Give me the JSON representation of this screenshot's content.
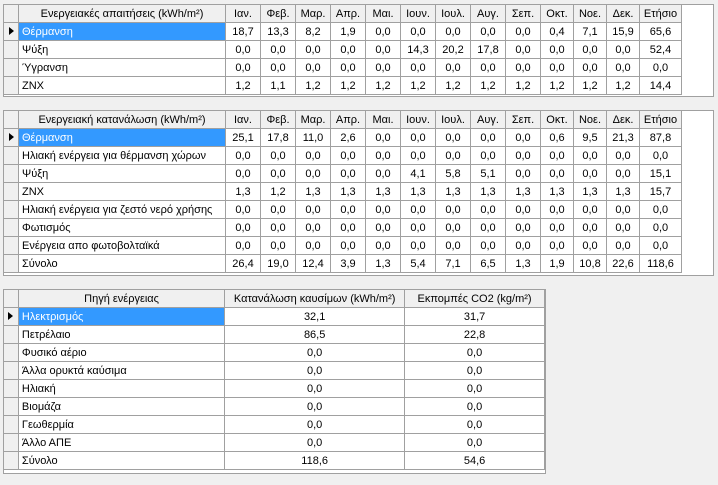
{
  "months": [
    "Ιαν.",
    "Φεβ.",
    "Μαρ.",
    "Απρ.",
    "Μαι.",
    "Ιουν.",
    "Ιουλ.",
    "Αυγ.",
    "Σεπ.",
    "Οκτ.",
    "Νοε.",
    "Δεκ.",
    "Ετήσιο"
  ],
  "demand": {
    "header": "Ενεργειακές απαιτήσεις (kWh/m²)",
    "rows": [
      {
        "label": "Θέρμανση",
        "values": [
          "18,7",
          "13,3",
          "8,2",
          "1,9",
          "0,0",
          "0,0",
          "0,0",
          "0,0",
          "0,0",
          "0,4",
          "7,1",
          "15,9",
          "65,6"
        ]
      },
      {
        "label": "Ψύξη",
        "values": [
          "0,0",
          "0,0",
          "0,0",
          "0,0",
          "0,0",
          "14,3",
          "20,2",
          "17,8",
          "0,0",
          "0,0",
          "0,0",
          "0,0",
          "52,4"
        ]
      },
      {
        "label": "Ύγρανση",
        "values": [
          "0,0",
          "0,0",
          "0,0",
          "0,0",
          "0,0",
          "0,0",
          "0,0",
          "0,0",
          "0,0",
          "0,0",
          "0,0",
          "0,0",
          "0,0"
        ]
      },
      {
        "label": "ΖΝΧ",
        "values": [
          "1,2",
          "1,1",
          "1,2",
          "1,2",
          "1,2",
          "1,2",
          "1,2",
          "1,2",
          "1,2",
          "1,2",
          "1,2",
          "1,2",
          "14,4"
        ]
      }
    ]
  },
  "consumption": {
    "header": "Ενεργειακή κατανάλωση (kWh/m²)",
    "rows": [
      {
        "label": "Θέρμανση",
        "values": [
          "25,1",
          "17,8",
          "11,0",
          "2,6",
          "0,0",
          "0,0",
          "0,0",
          "0,0",
          "0,0",
          "0,6",
          "9,5",
          "21,3",
          "87,8"
        ]
      },
      {
        "label": "Ηλιακή ενέργεια για θέρμανση χώρων",
        "values": [
          "0,0",
          "0,0",
          "0,0",
          "0,0",
          "0,0",
          "0,0",
          "0,0",
          "0,0",
          "0,0",
          "0,0",
          "0,0",
          "0,0",
          "0,0"
        ]
      },
      {
        "label": "Ψύξη",
        "values": [
          "0,0",
          "0,0",
          "0,0",
          "0,0",
          "0,0",
          "4,1",
          "5,8",
          "5,1",
          "0,0",
          "0,0",
          "0,0",
          "0,0",
          "15,1"
        ]
      },
      {
        "label": "ΖΝΧ",
        "values": [
          "1,3",
          "1,2",
          "1,3",
          "1,3",
          "1,3",
          "1,3",
          "1,3",
          "1,3",
          "1,3",
          "1,3",
          "1,3",
          "1,3",
          "15,7"
        ]
      },
      {
        "label": "Ηλιακή ενέργεια για ζεστό νερό χρήσης",
        "values": [
          "0,0",
          "0,0",
          "0,0",
          "0,0",
          "0,0",
          "0,0",
          "0,0",
          "0,0",
          "0,0",
          "0,0",
          "0,0",
          "0,0",
          "0,0"
        ]
      },
      {
        "label": "Φωτισμός",
        "values": [
          "0,0",
          "0,0",
          "0,0",
          "0,0",
          "0,0",
          "0,0",
          "0,0",
          "0,0",
          "0,0",
          "0,0",
          "0,0",
          "0,0",
          "0,0"
        ]
      },
      {
        "label": "Ενέργεια απο φωτοβολταϊκά",
        "values": [
          "0,0",
          "0,0",
          "0,0",
          "0,0",
          "0,0",
          "0,0",
          "0,0",
          "0,0",
          "0,0",
          "0,0",
          "0,0",
          "0,0",
          "0,0"
        ]
      },
      {
        "label": "Σύνολο",
        "values": [
          "26,4",
          "19,0",
          "12,4",
          "3,9",
          "1,3",
          "5,4",
          "7,1",
          "6,5",
          "1,3",
          "1,9",
          "10,8",
          "22,6",
          "118,6"
        ]
      }
    ]
  },
  "sources": {
    "headers": [
      "Πηγή ενέργειας",
      "Κατανάλωση καυσίμων (kWh/m²)",
      "Εκπομπές CO2 (kg/m²)"
    ],
    "rows": [
      {
        "label": "Ηλεκτρισμός",
        "fuel": "32,1",
        "co2": "31,7"
      },
      {
        "label": "Πετρέλαιο",
        "fuel": "86,5",
        "co2": "22,8"
      },
      {
        "label": "Φυσικό αέριο",
        "fuel": "0,0",
        "co2": "0,0"
      },
      {
        "label": "Άλλα ορυκτά καύσιμα",
        "fuel": "0,0",
        "co2": "0,0"
      },
      {
        "label": "Ηλιακή",
        "fuel": "0,0",
        "co2": "0,0"
      },
      {
        "label": "Βιομάζα",
        "fuel": "0,0",
        "co2": "0,0"
      },
      {
        "label": "Γεωθερμία",
        "fuel": "0,0",
        "co2": "0,0"
      },
      {
        "label": "Άλλο ΑΠΕ",
        "fuel": "0,0",
        "co2": "0,0"
      },
      {
        "label": "Σύνολο",
        "fuel": "118,6",
        "co2": "54,6"
      }
    ]
  },
  "colors": {
    "selection": "#3399ff",
    "header_bg": "#f0f0f0",
    "grid_line": "#a0a0a0"
  }
}
